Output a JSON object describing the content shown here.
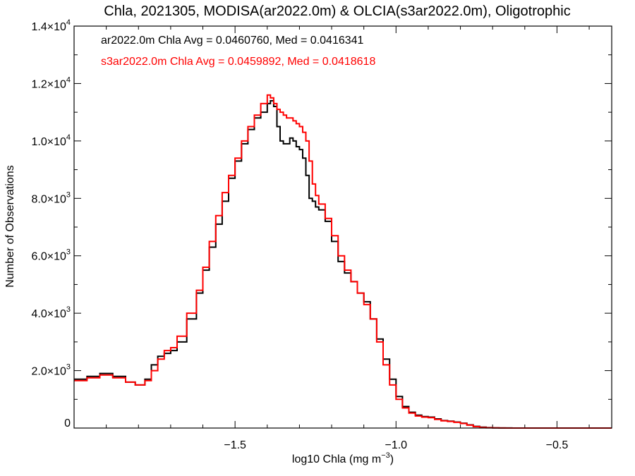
{
  "chart_data": {
    "type": "line",
    "title": "Chla, 2021305, MODISA(ar2022.0m) & OLCIA(s3ar2022.0m), Oligotrophic",
    "xlabel_main": "log10 Chla (mg m",
    "xlabel_sup": "−3",
    "xlabel_end": ")",
    "ylabel": "Number of Observations",
    "xlim": [
      -2.0,
      -0.33
    ],
    "ylim": [
      0,
      14000
    ],
    "grid": false,
    "legend_placement": "top-left",
    "step": true,
    "x_ticks": [
      {
        "value": -1.5,
        "label": "−1.5"
      },
      {
        "value": -1.0,
        "label": "−1.0"
      },
      {
        "value": -0.5,
        "label": "−0.5"
      }
    ],
    "y_ticks": [
      {
        "value": 0,
        "label": "0",
        "mant": "0",
        "exp": ""
      },
      {
        "value": 2000,
        "label": "2.0×10³",
        "mant": "2.0×10",
        "exp": "3"
      },
      {
        "value": 4000,
        "label": "4.0×10³",
        "mant": "4.0×10",
        "exp": "3"
      },
      {
        "value": 6000,
        "label": "6.0×10³",
        "mant": "6.0×10",
        "exp": "3"
      },
      {
        "value": 8000,
        "label": "8.0×10³",
        "mant": "8.0×10",
        "exp": "3"
      },
      {
        "value": 10000,
        "label": "1.0×10⁴",
        "mant": "1.0×10",
        "exp": "4"
      },
      {
        "value": 12000,
        "label": "1.2×10⁴",
        "mant": "1.2×10",
        "exp": "4"
      },
      {
        "value": 14000,
        "label": "1.4×10⁴",
        "mant": "1.4×10",
        "exp": "4"
      }
    ],
    "annotations": [
      {
        "text": "ar2022.0m Chla Avg = 0.0460760, Med = 0.0416341",
        "color": "#000000"
      },
      {
        "text": "s3ar2022.0m Chla Avg = 0.0459892, Med = 0.0418618",
        "color": "#ff0000"
      }
    ],
    "series": [
      {
        "color": "#000000",
        "x": [
          -2.0,
          -1.96,
          -1.92,
          -1.88,
          -1.84,
          -1.81,
          -1.78,
          -1.76,
          -1.74,
          -1.72,
          -1.7,
          -1.68,
          -1.65,
          -1.62,
          -1.6,
          -1.58,
          -1.56,
          -1.54,
          -1.52,
          -1.5,
          -1.48,
          -1.46,
          -1.44,
          -1.42,
          -1.4,
          -1.39,
          -1.38,
          -1.37,
          -1.36,
          -1.35,
          -1.34,
          -1.33,
          -1.32,
          -1.31,
          -1.3,
          -1.29,
          -1.28,
          -1.27,
          -1.26,
          -1.25,
          -1.24,
          -1.22,
          -1.2,
          -1.18,
          -1.16,
          -1.14,
          -1.12,
          -1.1,
          -1.08,
          -1.06,
          -1.04,
          -1.02,
          -1.0,
          -0.98,
          -0.96,
          -0.94,
          -0.92,
          -0.9,
          -0.88,
          -0.86,
          -0.84,
          -0.82,
          -0.8,
          -0.78,
          -0.76,
          -0.74,
          -0.72,
          -0.7,
          -0.68,
          -0.66,
          -0.64,
          -0.6,
          -0.55,
          -0.5,
          -0.45,
          -0.4,
          -0.35
        ],
        "y": [
          1700,
          1800,
          1900,
          1800,
          1600,
          1500,
          1700,
          2200,
          2500,
          2600,
          2700,
          3000,
          3800,
          4700,
          5500,
          6300,
          7100,
          7900,
          8700,
          9300,
          9900,
          10400,
          10800,
          11000,
          11300,
          11400,
          11200,
          10500,
          10000,
          9900,
          9900,
          10100,
          10000,
          9800,
          9700,
          9400,
          8800,
          8000,
          7900,
          7700,
          7600,
          7200,
          6500,
          5800,
          5400,
          5100,
          4700,
          4400,
          3800,
          3100,
          2400,
          1700,
          1100,
          750,
          550,
          450,
          400,
          380,
          320,
          260,
          240,
          210,
          170,
          110,
          60,
          30,
          15,
          5,
          3,
          2,
          1,
          0,
          0,
          0,
          0,
          0,
          0
        ]
      },
      {
        "color": "#ff0000",
        "x": [
          -2.0,
          -1.96,
          -1.92,
          -1.88,
          -1.84,
          -1.81,
          -1.78,
          -1.76,
          -1.74,
          -1.72,
          -1.7,
          -1.68,
          -1.65,
          -1.62,
          -1.6,
          -1.58,
          -1.56,
          -1.54,
          -1.52,
          -1.5,
          -1.48,
          -1.46,
          -1.44,
          -1.42,
          -1.4,
          -1.39,
          -1.38,
          -1.37,
          -1.36,
          -1.35,
          -1.34,
          -1.33,
          -1.32,
          -1.31,
          -1.3,
          -1.29,
          -1.28,
          -1.27,
          -1.26,
          -1.25,
          -1.24,
          -1.22,
          -1.2,
          -1.18,
          -1.16,
          -1.14,
          -1.12,
          -1.1,
          -1.08,
          -1.06,
          -1.04,
          -1.02,
          -1.0,
          -0.98,
          -0.96,
          -0.94,
          -0.92,
          -0.9,
          -0.88,
          -0.86,
          -0.84,
          -0.82,
          -0.8,
          -0.78,
          -0.76,
          -0.74,
          -0.72,
          -0.7,
          -0.68,
          -0.66,
          -0.64,
          -0.6,
          -0.55,
          -0.5,
          -0.45,
          -0.4,
          -0.35
        ],
        "y": [
          1650,
          1750,
          1850,
          1750,
          1600,
          1500,
          1650,
          2000,
          2400,
          2700,
          2800,
          3200,
          4000,
          4800,
          5600,
          6500,
          7400,
          8200,
          8800,
          9400,
          10000,
          10500,
          10900,
          11300,
          11600,
          11500,
          11300,
          11100,
          11000,
          10900,
          10800,
          10800,
          10700,
          10600,
          10500,
          10300,
          10000,
          9300,
          8500,
          8100,
          7800,
          7300,
          6700,
          6000,
          5500,
          5100,
          4700,
          4300,
          3800,
          3000,
          2200,
          1500,
          1000,
          700,
          520,
          420,
          380,
          360,
          300,
          250,
          230,
          200,
          160,
          100,
          50,
          20,
          10,
          4,
          2,
          1,
          0,
          0,
          0,
          0,
          0,
          0,
          0
        ]
      }
    ]
  }
}
